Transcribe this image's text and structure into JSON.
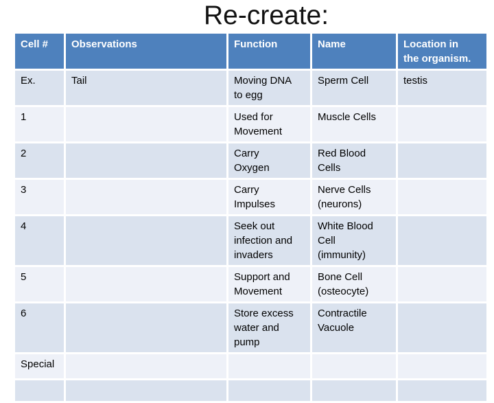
{
  "title": "Re-create:",
  "colors": {
    "header_bg": "#4e81bd",
    "band_dark": "#dae2ee",
    "band_light": "#eef1f8",
    "header_text": "#ffffff",
    "body_text": "#000000",
    "title_text": "#111111",
    "background": "#ffffff"
  },
  "table": {
    "columns": [
      "Cell #",
      "Observations",
      "Function",
      "Name",
      "Location in\nthe organism."
    ],
    "rows": [
      {
        "cell_num": "Ex.",
        "observations": "Tail",
        "function": "Moving DNA\nto egg",
        "name": "Sperm Cell",
        "location": "testis"
      },
      {
        "cell_num": "1",
        "observations": "",
        "function": "Used for\nMovement",
        "name": "Muscle Cells",
        "location": ""
      },
      {
        "cell_num": "2",
        "observations": "",
        "function": "Carry\nOxygen",
        "name": "Red Blood\nCells",
        "location": ""
      },
      {
        "cell_num": "3",
        "observations": "",
        "function": "Carry\nImpulses",
        "name": "Nerve Cells\n(neurons)",
        "location": ""
      },
      {
        "cell_num": "4",
        "observations": "",
        "function": "Seek out\ninfection and\ninvaders",
        "name": "White Blood\nCell\n(immunity)",
        "location": ""
      },
      {
        "cell_num": "5",
        "observations": "",
        "function": "Support and\nMovement",
        "name": "Bone Cell\n(osteocyte)",
        "location": ""
      },
      {
        "cell_num": "6",
        "observations": "",
        "function": "Store excess\nwater and\npump",
        "name": "Contractile\nVacuole",
        "location": ""
      },
      {
        "cell_num": "Special",
        "observations": "",
        "function": "",
        "name": "",
        "location": ""
      }
    ]
  }
}
